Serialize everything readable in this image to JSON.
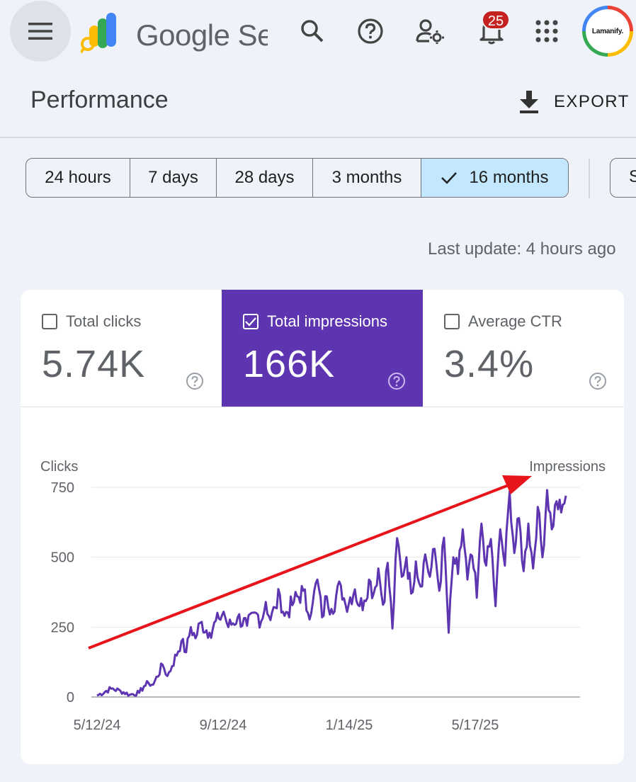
{
  "app": {
    "title": "Google Sea"
  },
  "toolbar": {
    "icons": [
      "menu-icon",
      "search-icon",
      "help-icon",
      "manage-accounts-icon",
      "notifications-icon",
      "apps-grid-icon"
    ],
    "notification_count": "25",
    "avatar_text": "Lamanify."
  },
  "page": {
    "title": "Performance",
    "export_label": "EXPORT"
  },
  "date_range": {
    "chips": [
      {
        "label": "24 hours",
        "selected": false
      },
      {
        "label": "7 days",
        "selected": false
      },
      {
        "label": "28 days",
        "selected": false
      },
      {
        "label": "3 months",
        "selected": false
      },
      {
        "label": "16 months",
        "selected": true
      }
    ],
    "extra_chip_label": "S",
    "last_update": "Last update: 4 hours ago"
  },
  "metrics": [
    {
      "label": "Total clicks",
      "value": "5.74K",
      "checked": false
    },
    {
      "label": "Total impressions",
      "value": "166K",
      "checked": true
    },
    {
      "label": "Average CTR",
      "value": "3.4%",
      "checked": false
    }
  ],
  "colors": {
    "accent": "#5e35b1",
    "line": "#5e35b1",
    "arrow": "#e8141c",
    "chip_selected": "#c2e7ff"
  },
  "chart_data": {
    "type": "line",
    "left_axis_label": "Clicks",
    "right_axis_label": "Impressions",
    "y_ticks": [
      0,
      250,
      500,
      750
    ],
    "ylim": [
      0,
      750
    ],
    "x_tick_labels": [
      "5/12/24",
      "9/12/24",
      "1/14/25",
      "5/17/25"
    ],
    "grid": true,
    "series": [
      {
        "key": [
          [
            0,
            5
          ],
          [
            3,
            30
          ],
          [
            5,
            22
          ],
          [
            7,
            8
          ],
          [
            9,
            15
          ],
          [
            10,
            38
          ],
          [
            11,
            50
          ],
          [
            12,
            44
          ],
          [
            14,
            115
          ],
          [
            15,
            75
          ],
          [
            16,
            110
          ],
          [
            18,
            200
          ],
          [
            19,
            160
          ],
          [
            20,
            250
          ],
          [
            21,
            210
          ],
          [
            22,
            265
          ],
          [
            24,
            230
          ],
          [
            26,
            280
          ],
          [
            27,
            305
          ],
          [
            28,
            250
          ],
          [
            30,
            285
          ],
          [
            32,
            255
          ],
          [
            34,
            300
          ],
          [
            35,
            270
          ],
          [
            36,
            340
          ],
          [
            37,
            275
          ],
          [
            38,
            320
          ],
          [
            39,
            365
          ],
          [
            40,
            290
          ],
          [
            42,
            340
          ],
          [
            44,
            380
          ],
          [
            45,
            300
          ],
          [
            46,
            335
          ],
          [
            47,
            420
          ],
          [
            48,
            285
          ],
          [
            49,
            360
          ],
          [
            50,
            315
          ],
          [
            52,
            400
          ],
          [
            53,
            330
          ],
          [
            55,
            385
          ],
          [
            56,
            325
          ],
          [
            57,
            345
          ],
          [
            58,
            420
          ],
          [
            59,
            370
          ],
          [
            60,
            460
          ],
          [
            61,
            330
          ],
          [
            62,
            480
          ],
          [
            63,
            245
          ],
          [
            64,
            568
          ],
          [
            65,
            430
          ],
          [
            66,
            500
          ],
          [
            67,
            370
          ],
          [
            68,
            485
          ],
          [
            69,
            395
          ],
          [
            70,
            510
          ],
          [
            71,
            430
          ],
          [
            72,
            530
          ],
          [
            73,
            380
          ],
          [
            74,
            570
          ],
          [
            75,
            230
          ],
          [
            76,
            500
          ],
          [
            77,
            440
          ],
          [
            78,
            600
          ],
          [
            79,
            420
          ],
          [
            80,
            505
          ],
          [
            81,
            355
          ],
          [
            82,
            620
          ],
          [
            83,
            470
          ],
          [
            84,
            565
          ],
          [
            85,
            325
          ],
          [
            86,
            600
          ],
          [
            87,
            470
          ],
          [
            88,
            735
          ],
          [
            89,
            515
          ],
          [
            90,
            640
          ],
          [
            91,
            450
          ],
          [
            92,
            620
          ],
          [
            93,
            460
          ],
          [
            94,
            680
          ],
          [
            95,
            500
          ],
          [
            96,
            740
          ],
          [
            97,
            600
          ],
          [
            98,
            700
          ],
          [
            99,
            660
          ],
          [
            100,
            720
          ]
        ],
        "note_key": "x is index from 0 to 100 across date range, y in impressions axis units"
      }
    ]
  }
}
